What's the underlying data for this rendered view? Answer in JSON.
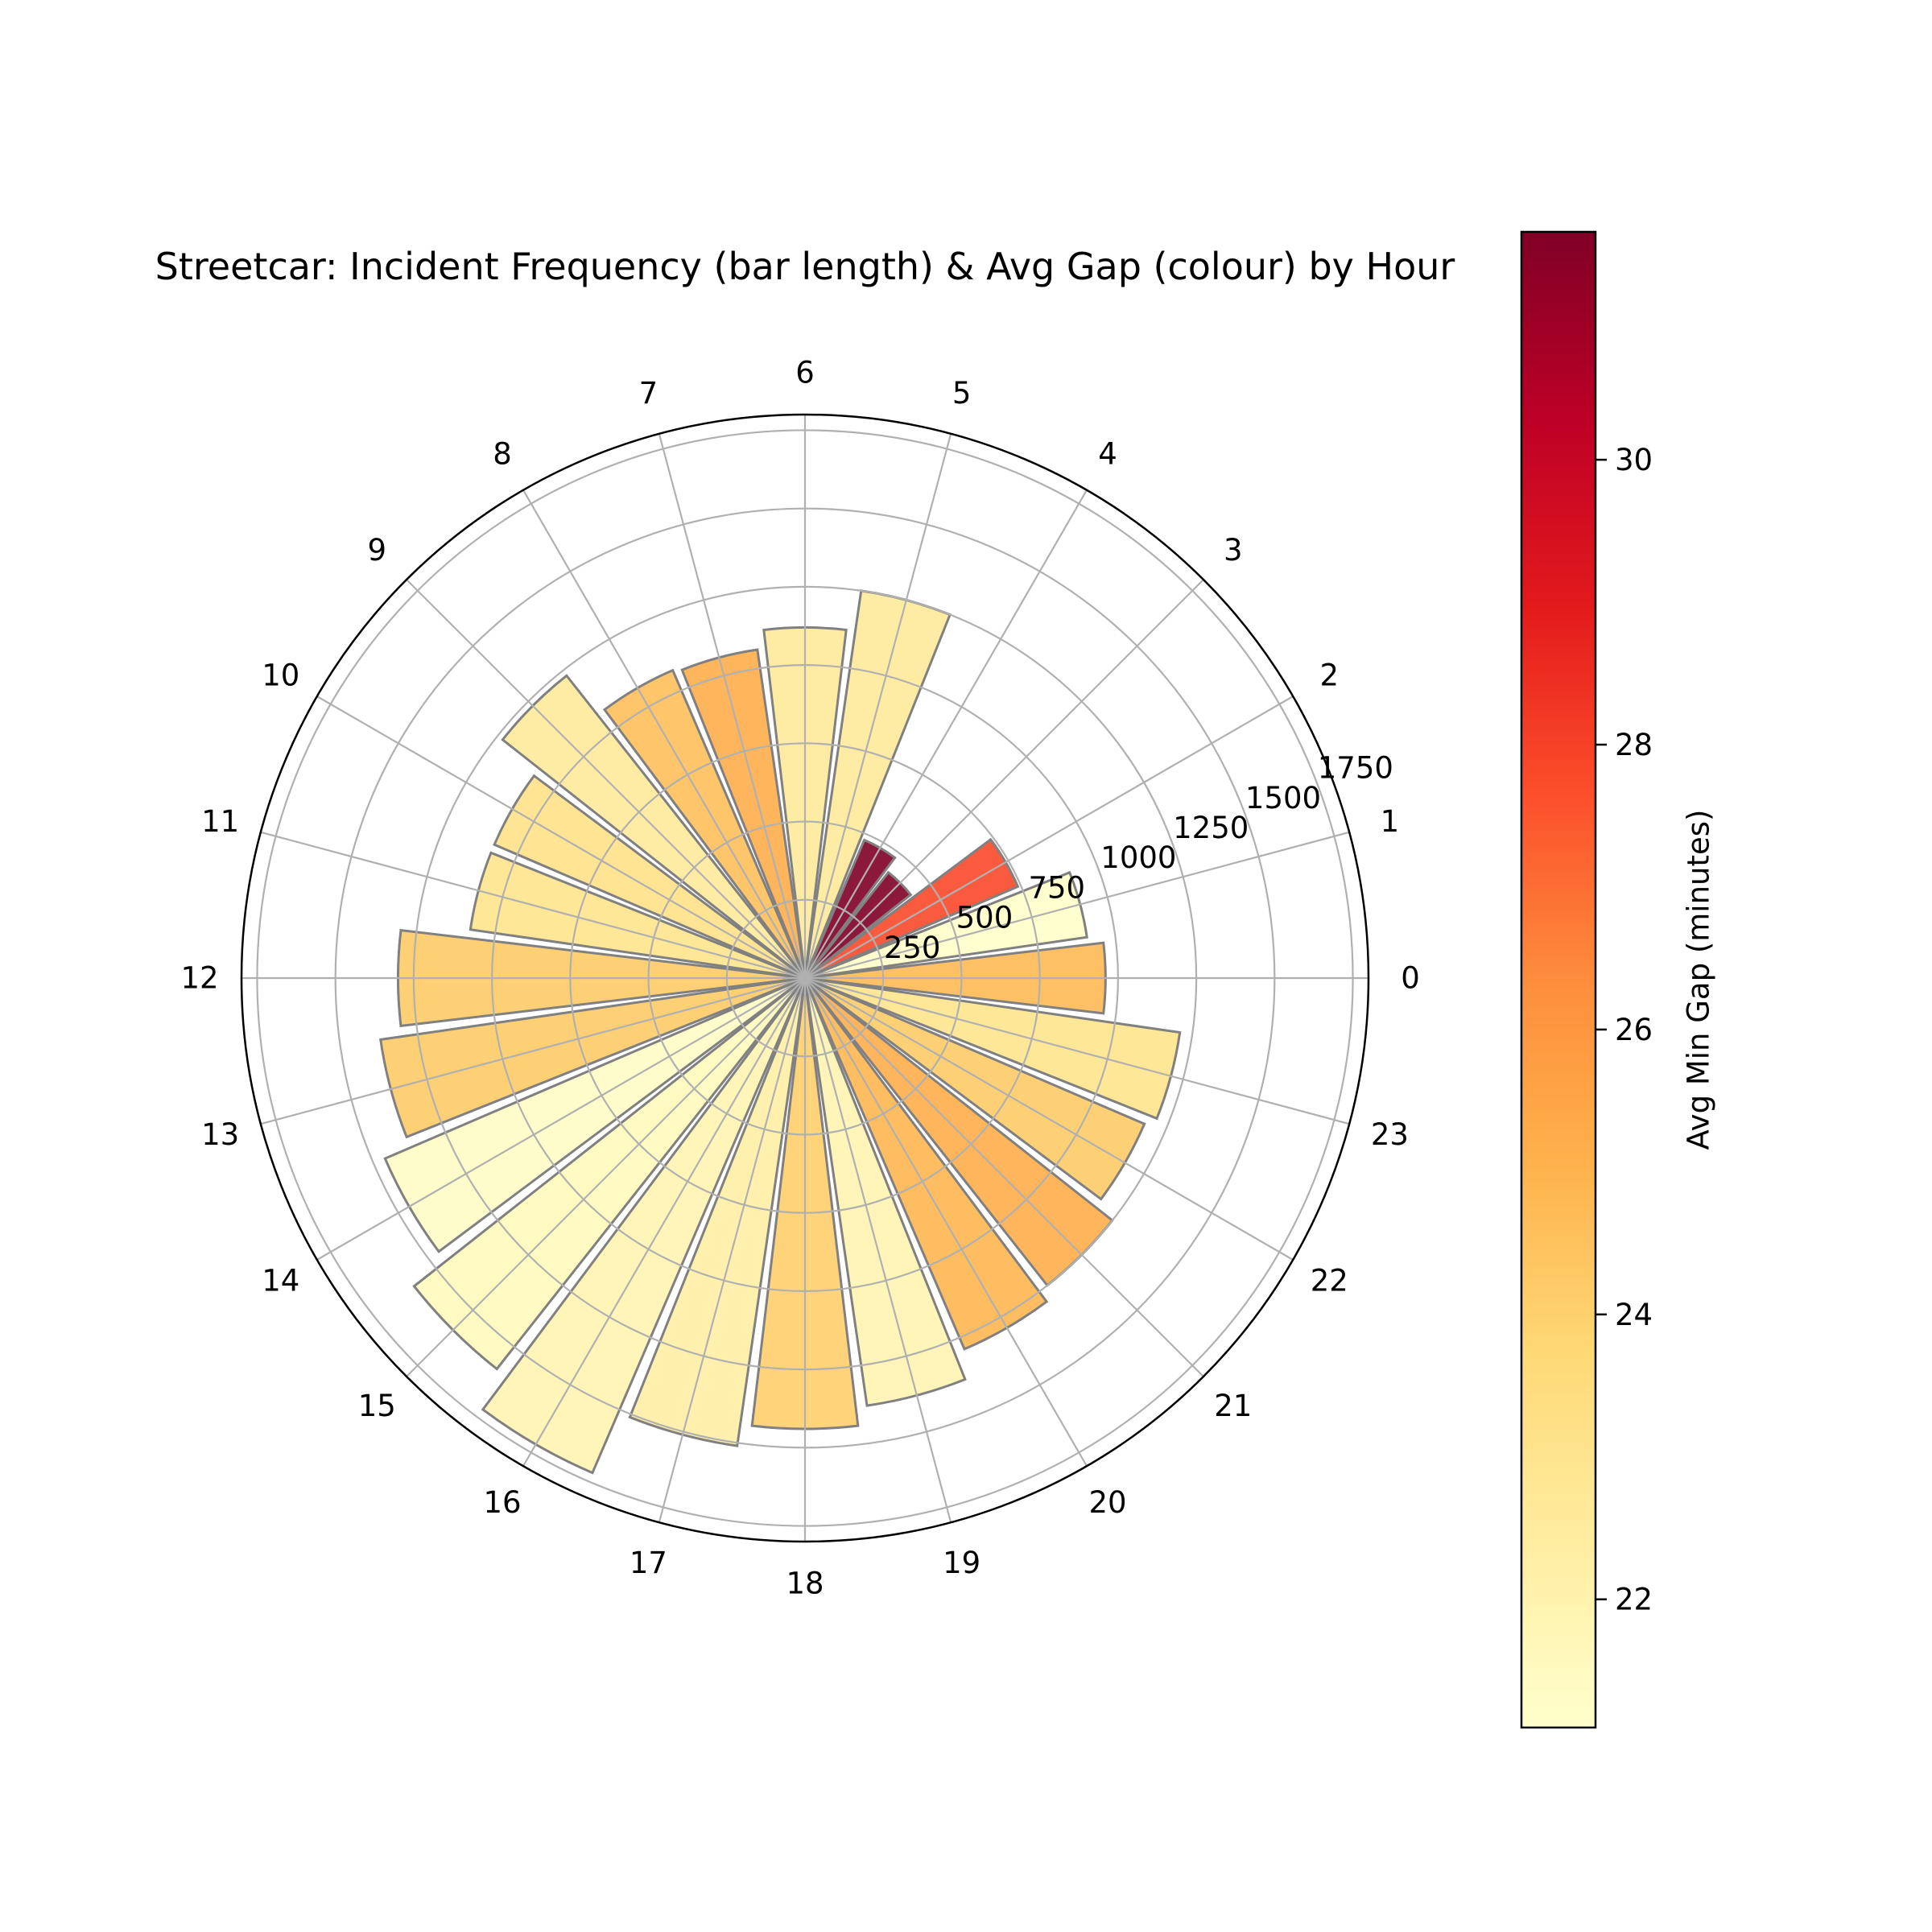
{
  "chart_data": {
    "type": "bar",
    "subtype": "polar",
    "title": "Streetcar: Incident Frequency (bar length) & Avg Gap (colour) by Hour",
    "angular_tick_labels": [
      "0",
      "1",
      "2",
      "3",
      "4",
      "5",
      "6",
      "7",
      "8",
      "9",
      "10",
      "11",
      "12",
      "13",
      "14",
      "15",
      "16",
      "17",
      "18",
      "19",
      "20",
      "21",
      "22",
      "23"
    ],
    "radial_tick_labels": [
      "250",
      "500",
      "750",
      "1000",
      "1250",
      "1500",
      "1750"
    ],
    "radial_ticks": [
      250,
      500,
      750,
      1000,
      1250,
      1500,
      1750
    ],
    "rlim": [
      0,
      1800
    ],
    "grid": true,
    "hours": [
      0,
      1,
      2,
      3,
      4,
      5,
      6,
      7,
      8,
      9,
      10,
      11,
      12,
      13,
      14,
      15,
      16,
      17,
      18,
      19,
      20,
      21,
      22,
      23
    ],
    "counts": [
      960,
      910,
      740,
      430,
      480,
      1250,
      1120,
      1060,
      1070,
      1230,
      1080,
      1080,
      1300,
      1370,
      1460,
      1590,
      1720,
      1510,
      1440,
      1380,
      1290,
      1250,
      1180,
      1210
    ],
    "avg_gap": [
      24.8,
      21.2,
      27.8,
      31.6,
      31.6,
      22.6,
      22.6,
      25.2,
      24.6,
      22.6,
      23.2,
      23.0,
      24.2,
      24.2,
      21.3,
      21.6,
      21.9,
      22.3,
      24.1,
      21.9,
      24.9,
      25.2,
      24.2,
      23.0
    ],
    "colorbar": {
      "label": "Avg Min Gap (minutes)",
      "ticks": [
        22,
        24,
        26,
        28,
        30
      ],
      "tick_labels": [
        "22",
        "24",
        "26",
        "28",
        "30"
      ],
      "range": [
        21.1,
        31.6
      ],
      "colormap": "YlOrRd",
      "colors": [
        "#ffffcc",
        "#ffeda0",
        "#fed976",
        "#feb24c",
        "#fd8d3c",
        "#fc4e2a",
        "#e31a1c",
        "#bd0026",
        "#800026"
      ]
    },
    "colors": {
      "bar_edge": "#808080",
      "grid": "#b0b0b0",
      "frame": "#000000"
    }
  }
}
